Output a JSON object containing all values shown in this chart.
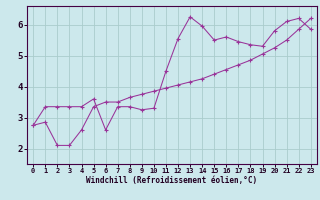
{
  "xlabel": "Windchill (Refroidissement éolien,°C)",
  "background_color": "#cce8ec",
  "grid_color": "#aacccc",
  "line_color": "#993399",
  "xlim": [
    -0.5,
    23.5
  ],
  "ylim": [
    1.5,
    6.6
  ],
  "yticks": [
    2,
    3,
    4,
    5,
    6
  ],
  "xticks": [
    0,
    1,
    2,
    3,
    4,
    5,
    6,
    7,
    8,
    9,
    10,
    11,
    12,
    13,
    14,
    15,
    16,
    17,
    18,
    19,
    20,
    21,
    22,
    23
  ],
  "series1_x": [
    0,
    1,
    2,
    3,
    4,
    5,
    6,
    7,
    8,
    9,
    10,
    11,
    12,
    13,
    14,
    15,
    16,
    17,
    18,
    19,
    20,
    21,
    22,
    23
  ],
  "series1_y": [
    2.75,
    2.85,
    2.1,
    2.1,
    2.6,
    3.35,
    3.5,
    3.5,
    3.65,
    3.75,
    3.85,
    3.95,
    4.05,
    4.15,
    4.25,
    4.4,
    4.55,
    4.7,
    4.85,
    5.05,
    5.25,
    5.5,
    5.85,
    6.2
  ],
  "series2_x": [
    0,
    1,
    2,
    3,
    4,
    5,
    6,
    7,
    8,
    9,
    10,
    11,
    12,
    13,
    14,
    15,
    16,
    17,
    18,
    19,
    20,
    21,
    22,
    23
  ],
  "series2_y": [
    2.75,
    3.35,
    3.35,
    3.35,
    3.35,
    3.6,
    2.6,
    3.35,
    3.35,
    3.25,
    3.3,
    4.5,
    5.55,
    6.25,
    5.95,
    5.5,
    5.6,
    5.45,
    5.35,
    5.3,
    5.8,
    6.1,
    6.2,
    5.85
  ]
}
